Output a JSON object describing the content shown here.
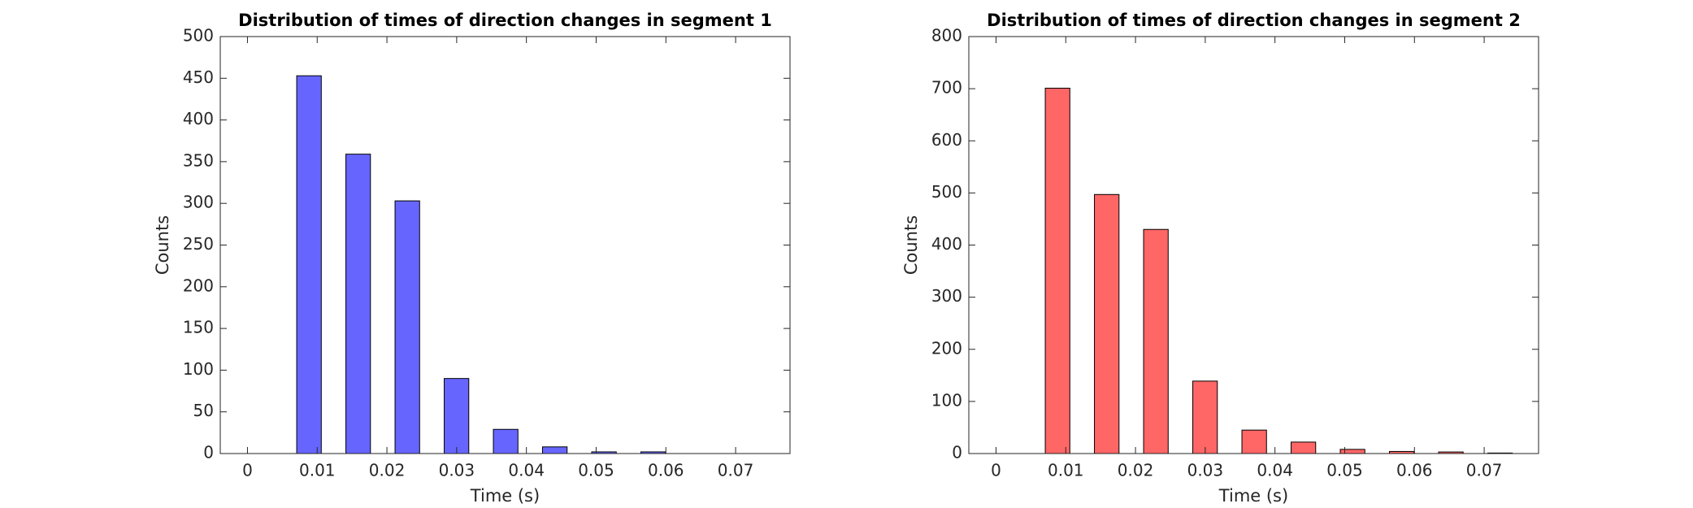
{
  "chart_data": [
    {
      "type": "histogram",
      "title": "Distribution of times of direction changes in segment 1",
      "xlabel": "Time (s)",
      "ylabel": "Counts",
      "bins": [
        0.0053,
        0.01235,
        0.0194,
        0.02645,
        0.0335,
        0.04055,
        0.0476,
        0.05465,
        0.0617
      ],
      "values": [
        453,
        359,
        303,
        90,
        29,
        8,
        2,
        2
      ],
      "color": "#6666ff",
      "xlim": [
        -0.0039,
        0.0778
      ],
      "xticks": [
        0,
        0.01,
        0.02,
        0.03,
        0.04,
        0.05,
        0.06,
        0.07
      ],
      "ylim": [
        0,
        500
      ],
      "yticks": [
        0,
        50,
        100,
        150,
        200,
        250,
        300,
        350,
        400,
        450,
        500
      ]
    },
    {
      "type": "histogram",
      "title": "Distribution of times of direction changes in segment 2",
      "xlabel": "Time (s)",
      "ylabel": "Counts",
      "bins": [
        0.0053,
        0.01235,
        0.0194,
        0.02645,
        0.0335,
        0.04055,
        0.0476,
        0.05465,
        0.0617,
        0.06875,
        0.0758
      ],
      "values": [
        701,
        497,
        430,
        139,
        45,
        22,
        8,
        4,
        3,
        1
      ],
      "color": "#ff6666",
      "xlim": [
        -0.0039,
        0.0778
      ],
      "xticks": [
        0,
        0.01,
        0.02,
        0.03,
        0.04,
        0.05,
        0.06,
        0.07
      ],
      "ylim": [
        0,
        800
      ],
      "yticks": [
        0,
        100,
        200,
        300,
        400,
        500,
        600,
        700,
        800
      ]
    }
  ]
}
